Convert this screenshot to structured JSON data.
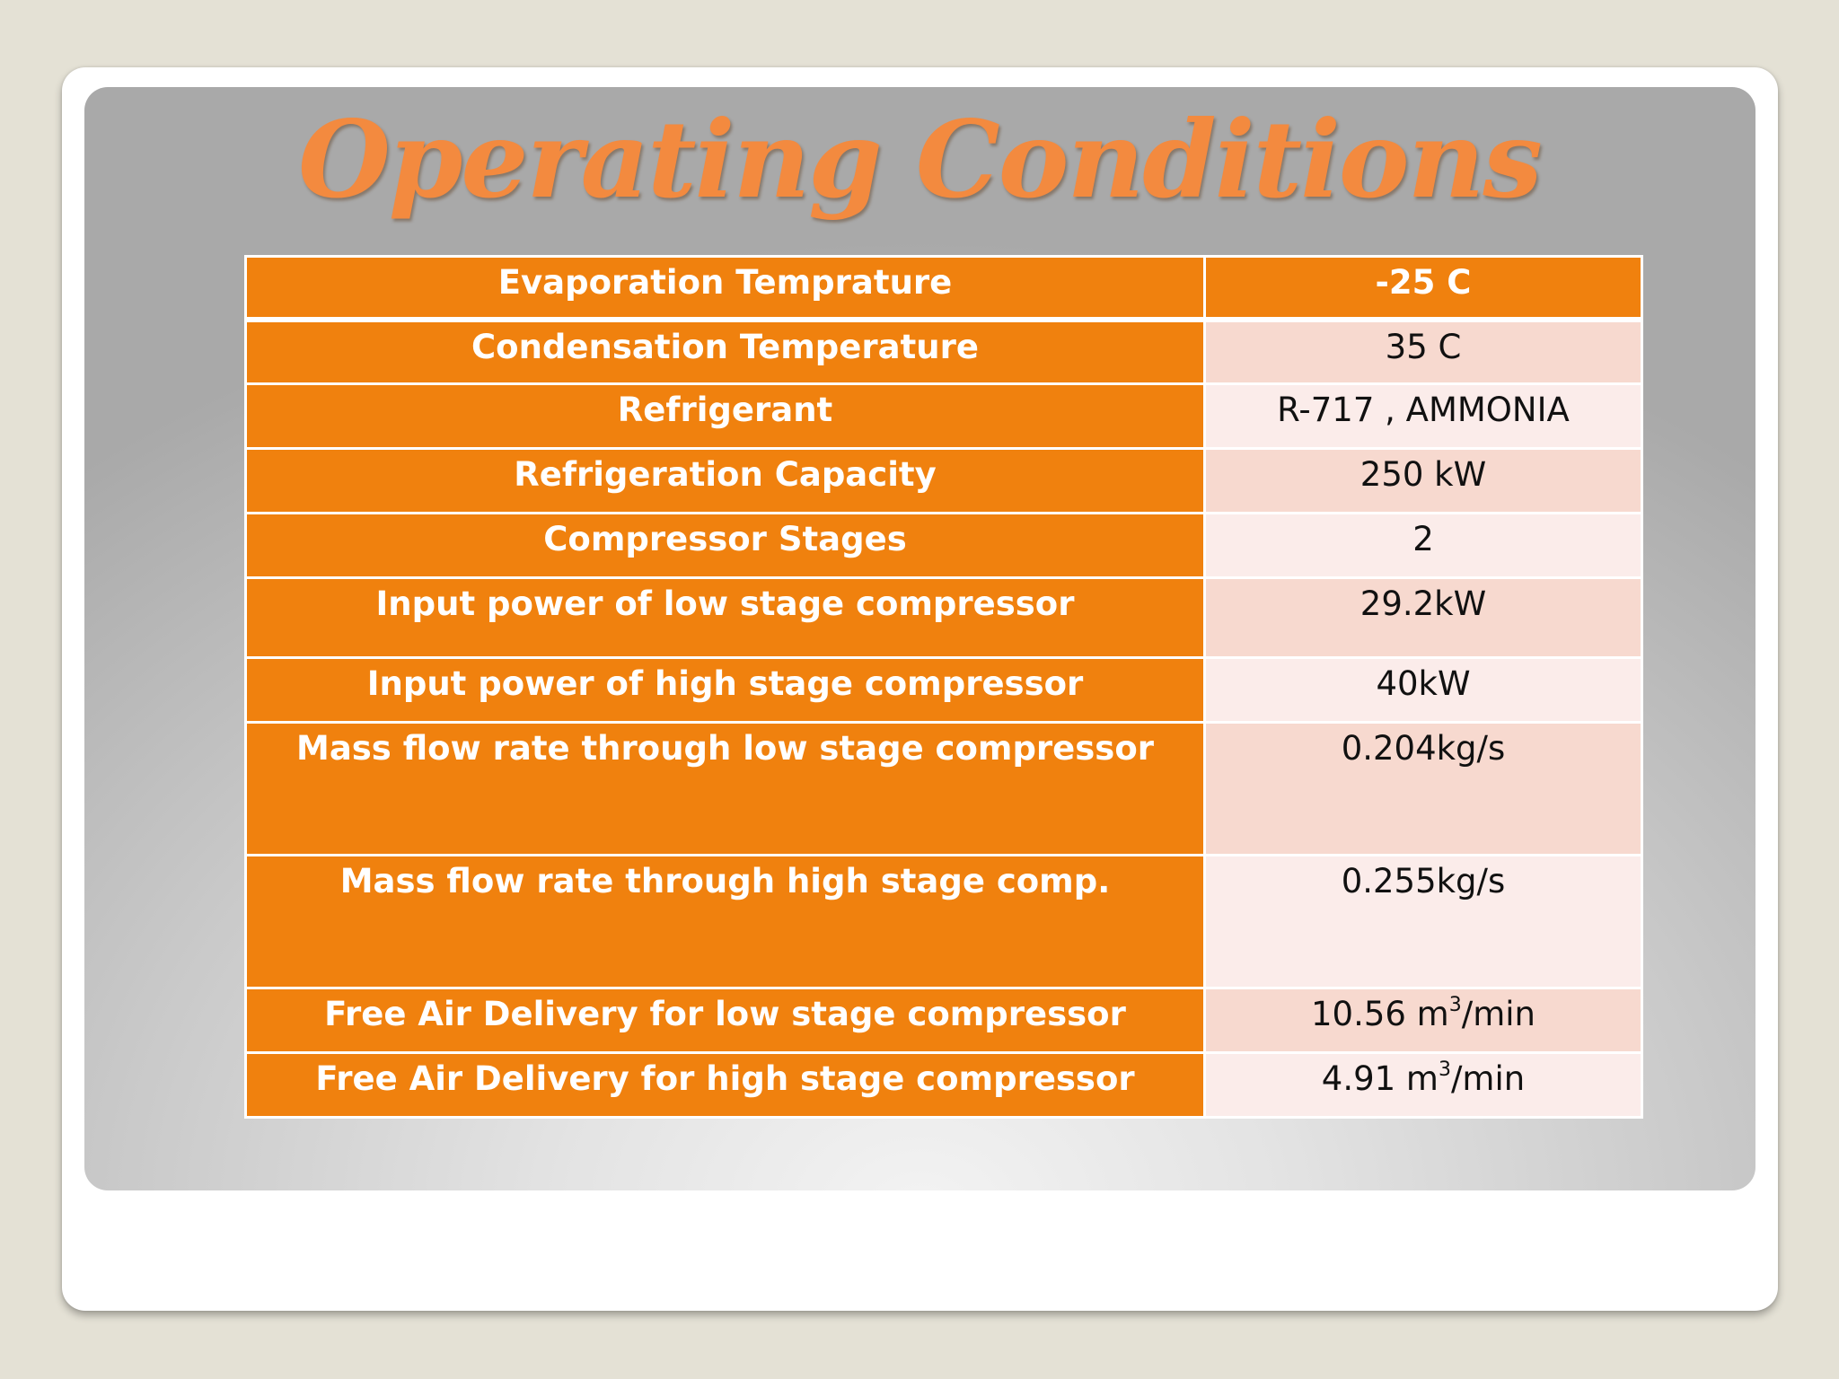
{
  "slide": {
    "title": "Operating Conditions"
  },
  "table": {
    "rows": [
      {
        "label": "Evaporation Temprature",
        "value": "-25 C"
      },
      {
        "label": "Condensation Temperature",
        "value": "35 C"
      },
      {
        "label": "Refrigerant",
        "value": "R-717 , AMMONIA"
      },
      {
        "label": "Refrigeration Capacity",
        "value": "250 kW"
      },
      {
        "label": "Compressor Stages",
        "value": "2"
      },
      {
        "label": "Input power of low stage compressor",
        "value": "29.2kW"
      },
      {
        "label": "Input power of high stage compressor",
        "value": "40kW"
      },
      {
        "label": "Mass flow rate through low stage compressor",
        "value": "0.204kg/s"
      },
      {
        "label": "Mass flow rate through high stage comp.",
        "value": "0.255kg/s"
      },
      {
        "label": "Free Air Delivery for low stage compressor",
        "value_number": "10.56 m",
        "value_exp": "3",
        "value_unit": "/min"
      },
      {
        "label": "Free Air Delivery for high stage compressor",
        "value_number": "4.91 m",
        "value_exp": "3",
        "value_unit": "/min"
      }
    ]
  },
  "colors": {
    "title": "#f38a3f",
    "label_cell": "#f0810e",
    "value_cell_dark": "#f7d9cf",
    "value_cell_light": "#fbecea",
    "background": "#e4e1d5"
  }
}
